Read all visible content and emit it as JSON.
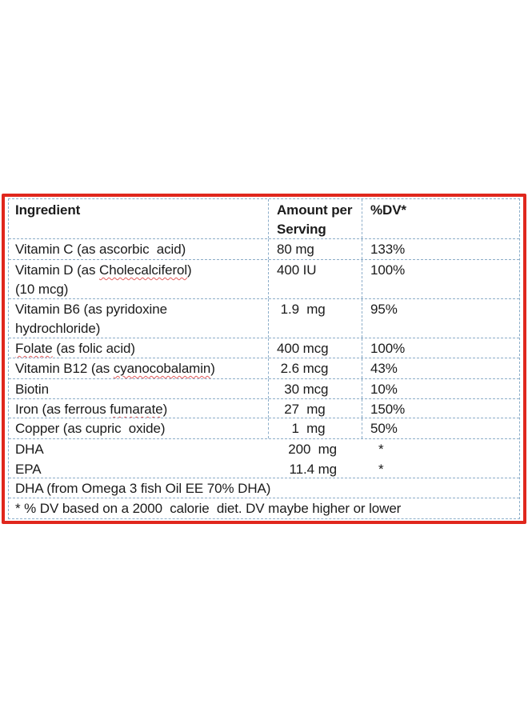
{
  "colors": {
    "frame_red": "#e0271d",
    "grid_blue": "#8cadc9",
    "text": "#1b1b1b",
    "spellcheck_red": "#e25b5b"
  },
  "table": {
    "header": {
      "col1": "Ingredient",
      "col2_line1": "Amount per",
      "col2_line2": "Serving",
      "col3": "%DV*"
    },
    "rows": [
      {
        "pre": "Vitamin C (as ascorbic  acid)",
        "miss": "",
        "post": "",
        "line2": "",
        "amount": "80 mg",
        "dv": "133%"
      },
      {
        "pre": "Vitamin D (as ",
        "miss": "Cholecalciferol",
        "post": ")",
        "line2": "(10 mcg)",
        "amount": "400 IU",
        "dv": "100%"
      },
      {
        "pre": "Vitamin B6 (as pyridoxine",
        "miss": "",
        "post": "",
        "line2": "hydrochloride)",
        "amount": " 1.9  mg",
        "dv": "95%"
      },
      {
        "pre": "",
        "miss": "Folate",
        "post": " (as folic acid)",
        "line2": "",
        "amount": "400 mcg",
        "dv": "100%"
      },
      {
        "pre": "Vitamin B12 (as ",
        "miss": "cyanocobalamin",
        "post": ")",
        "line2": "",
        "amount": " 2.6 mcg",
        "dv": "43%"
      },
      {
        "pre": "Biotin",
        "miss": "",
        "post": "",
        "line2": "",
        "amount": "  30 mcg",
        "dv": "10%"
      },
      {
        "pre": "Iron (as ferrous ",
        "miss": "fumarate",
        "post": ")",
        "line2": "",
        "amount": "  27  mg",
        "dv": "150%"
      },
      {
        "pre": "Copper (as cupric  oxide)",
        "miss": "",
        "post": "",
        "line2": "",
        "amount": "    1  mg",
        "dv": "50%"
      }
    ],
    "merged_rows": [
      {
        "name": "DHA",
        "amount": "200  mg",
        "dv": "*"
      },
      {
        "name": "EPA",
        "amount": "11.4 mg",
        "dv": "*"
      }
    ],
    "span_rows": [
      "DHA (from Omega 3 fish Oil EE 70% DHA)",
      "* % DV based on a 2000  calorie  diet. DV maybe higher or lower"
    ]
  }
}
